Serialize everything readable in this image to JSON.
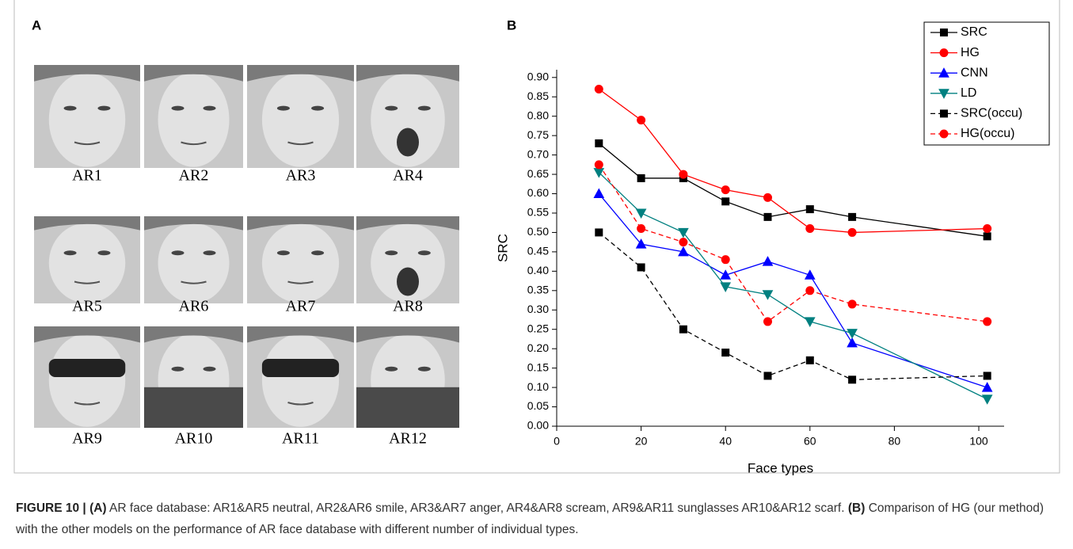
{
  "panel_a": {
    "label": "A",
    "faces": [
      "AR1",
      "AR2",
      "AR3",
      "AR4",
      "AR5",
      "AR6",
      "AR7",
      "AR8",
      "AR9",
      "AR10",
      "AR11",
      "AR12"
    ]
  },
  "chart_data": {
    "type": "line",
    "panel_label": "B",
    "xlabel": "Face types",
    "ylabel": "SRC",
    "x": [
      10,
      20,
      30,
      40,
      50,
      60,
      70,
      102
    ],
    "series": [
      {
        "name": "SRC",
        "color": "#000000",
        "marker": "square",
        "dashed": false,
        "values": [
          0.73,
          0.64,
          0.64,
          0.58,
          0.54,
          0.56,
          0.54,
          0.49
        ]
      },
      {
        "name": "HG",
        "color": "#ff0000",
        "marker": "circle",
        "dashed": false,
        "values": [
          0.87,
          0.79,
          0.65,
          0.61,
          0.59,
          0.51,
          0.5,
          0.51
        ]
      },
      {
        "name": "CNN",
        "color": "#0000ff",
        "marker": "triangle-up",
        "dashed": false,
        "values": [
          0.6,
          0.47,
          0.45,
          0.39,
          0.425,
          0.39,
          0.215,
          0.1
        ]
      },
      {
        "name": "LD",
        "color": "#008080",
        "marker": "triangle-down",
        "dashed": false,
        "values": [
          0.655,
          0.55,
          0.5,
          0.36,
          0.34,
          0.27,
          0.24,
          0.07
        ]
      },
      {
        "name": "SRC(occu)",
        "color": "#000000",
        "marker": "square",
        "dashed": true,
        "values": [
          0.5,
          0.41,
          0.25,
          0.19,
          0.13,
          0.17,
          0.12,
          0.13
        ]
      },
      {
        "name": "HG(occu)",
        "color": "#ff0000",
        "marker": "circle",
        "dashed": true,
        "values": [
          0.675,
          0.51,
          0.475,
          0.43,
          0.27,
          0.35,
          0.315,
          0.27
        ]
      }
    ],
    "xlim": [
      0,
      106
    ],
    "xticks": [
      0,
      20,
      40,
      60,
      80,
      100
    ],
    "ylim": [
      0,
      0.92
    ],
    "yticks": [
      {
        "value": 0,
        "label": "0.00"
      },
      {
        "value": 0.05,
        "label": "0.05"
      },
      {
        "value": 0.1,
        "label": "0.10"
      },
      {
        "value": 0.15,
        "label": "0.15"
      },
      {
        "value": 0.2,
        "label": "0.20"
      },
      {
        "value": 0.25,
        "label": "0.25"
      },
      {
        "value": 0.3,
        "label": "0.30"
      },
      {
        "value": 0.35,
        "label": "0.35"
      },
      {
        "value": 0.4,
        "label": "0.40"
      },
      {
        "value": 0.45,
        "label": "0.45"
      },
      {
        "value": 0.5,
        "label": "0.50"
      },
      {
        "value": 0.55,
        "label": "0.55"
      },
      {
        "value": 0.6,
        "label": "0.60"
      },
      {
        "value": 0.65,
        "label": "0.65"
      },
      {
        "value": 0.7,
        "label": "0.70"
      },
      {
        "value": 0.75,
        "label": "0.75"
      },
      {
        "value": 0.8,
        "label": "0.80"
      },
      {
        "value": 0.85,
        "label": "0.85"
      },
      {
        "value": 0.9,
        "label": "0.90"
      }
    ],
    "legend": "upper right"
  },
  "caption": {
    "figure": "FIGURE 10 |",
    "parts": [
      {
        "tag": "(A)",
        "text": "AR face database: AR1&AR5 neutral, AR2&AR6 smile, AR3&AR7 anger, AR4&AR8 scream, AR9&AR11 sunglasses AR10&AR12 scarf."
      },
      {
        "tag": "(B)",
        "text": "Comparison of HG (our method) with the other models on the performance of AR face database with different number of individual types."
      }
    ]
  }
}
